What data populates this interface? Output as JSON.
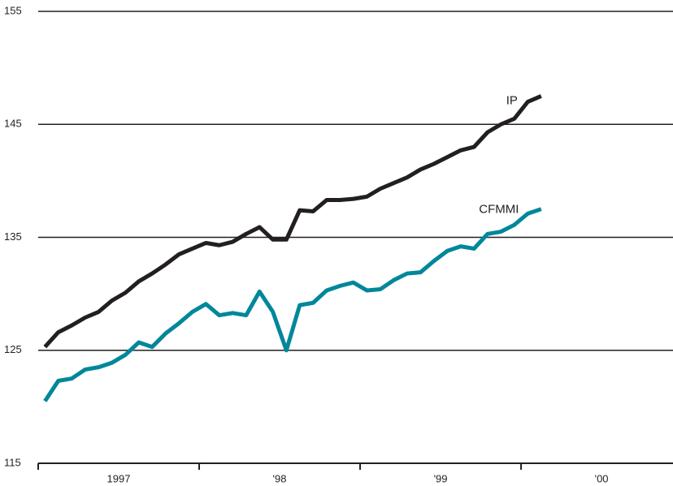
{
  "chart_data": {
    "type": "line",
    "x": [
      1997.042,
      1997.125,
      1997.208,
      1997.292,
      1997.375,
      1997.458,
      1997.542,
      1997.625,
      1997.708,
      1997.792,
      1997.875,
      1997.958,
      1998.042,
      1998.125,
      1998.208,
      1998.292,
      1998.375,
      1998.458,
      1998.542,
      1998.625,
      1998.708,
      1998.792,
      1998.875,
      1998.958,
      1999.042,
      1999.125,
      1999.208,
      1999.292,
      1999.375,
      1999.458,
      1999.542,
      1999.625,
      1999.708,
      1999.792,
      1999.875,
      1999.958,
      2000.042,
      2000.125
    ],
    "series": [
      {
        "name": "IP",
        "color": "#231f20",
        "values": [
          125.3,
          126.6,
          127.2,
          127.9,
          128.4,
          129.4,
          130.1,
          131.1,
          131.8,
          132.6,
          133.5,
          134.0,
          134.5,
          134.3,
          134.6,
          135.3,
          135.9,
          134.8,
          134.8,
          137.4,
          137.3,
          138.3,
          138.3,
          138.4,
          138.6,
          139.3,
          139.8,
          140.3,
          141.0,
          141.5,
          142.1,
          142.7,
          143.0,
          144.3,
          145.0,
          145.5,
          147.0,
          147.5
        ]
      },
      {
        "name": "CFMMI",
        "color": "#00879a",
        "values": [
          120.5,
          122.3,
          122.5,
          123.3,
          123.5,
          123.9,
          124.6,
          125.7,
          125.3,
          126.5,
          127.4,
          128.4,
          129.1,
          128.1,
          128.3,
          128.1,
          130.2,
          128.4,
          125.0,
          129.0,
          129.2,
          130.3,
          130.7,
          131.0,
          130.3,
          130.4,
          131.2,
          131.8,
          131.9,
          132.9,
          133.8,
          134.2,
          134.0,
          135.3,
          135.5,
          136.1,
          137.1,
          137.5
        ]
      }
    ],
    "xlim": [
      1997,
      2000.944
    ],
    "xticks": [
      {
        "value": 1997.5,
        "label": "1997"
      },
      {
        "value": 1998.5,
        "label": "'98"
      },
      {
        "value": 1999.5,
        "label": "'99"
      },
      {
        "value": 2000.5,
        "label": "'00"
      }
    ],
    "xtick_marks": [
      1997,
      1998,
      1999,
      2000
    ],
    "ylim": [
      115,
      155
    ],
    "yticks": [
      115,
      125,
      135,
      145,
      155
    ],
    "grid": true,
    "legend": "inline"
  }
}
